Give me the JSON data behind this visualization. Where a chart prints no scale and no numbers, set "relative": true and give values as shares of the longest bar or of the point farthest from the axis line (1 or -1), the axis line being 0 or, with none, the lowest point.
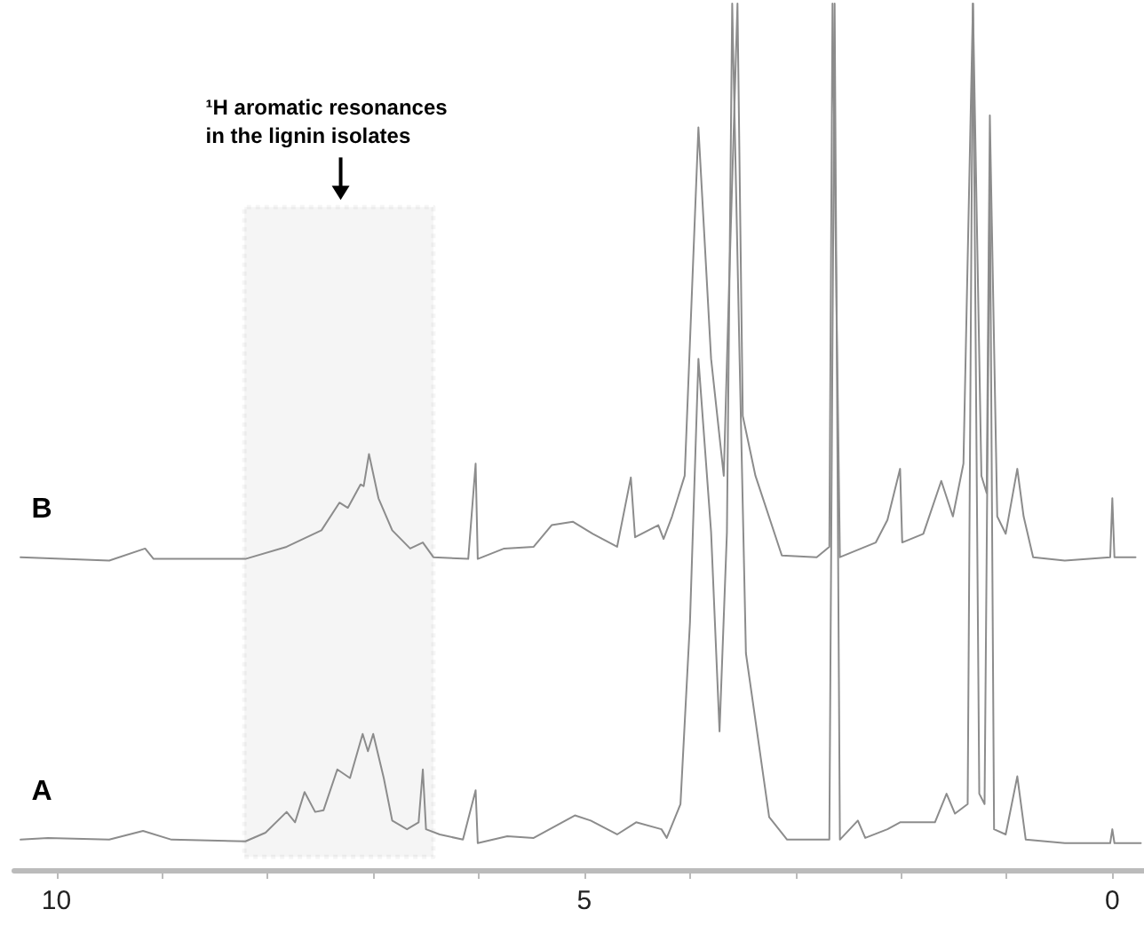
{
  "chart_data": {
    "type": "line",
    "relative": true,
    "legend": false,
    "grid": false,
    "marker": "none",
    "xlim": [
      10.4,
      -0.3
    ],
    "xticks": [
      10,
      {
        "value": 9,
        "label": null
      },
      {
        "value": 8,
        "label": null
      },
      {
        "value": 7,
        "label": null
      },
      {
        "value": 6,
        "label": null
      },
      5,
      {
        "value": 4,
        "label": null
      },
      {
        "value": 3,
        "label": null
      },
      {
        "value": 2,
        "label": null
      },
      {
        "value": 1,
        "label": null
      },
      0
    ],
    "bands": [
      {
        "axis": "x",
        "from": 8.22,
        "to": 6.43,
        "label": "¹H aromatic resonances\nin the lignin isolates",
        "color": "#000000"
      }
    ],
    "series": [
      {
        "name": "B",
        "color": "#8c8c8c",
        "x": [
          10.34,
          9.5,
          9.16,
          9.08,
          8.21,
          7.82,
          7.49,
          7.32,
          7.24,
          7.12,
          7.09,
          7.04,
          6.95,
          6.82,
          6.65,
          6.53,
          6.43,
          6.1,
          6.03,
          6.01,
          5.76,
          5.48,
          5.31,
          5.11,
          4.92,
          4.69,
          4.56,
          4.52,
          4.3,
          4.25,
          4.17,
          4.05,
          3.92,
          3.8,
          3.68,
          3.63,
          3.55,
          3.5,
          3.38,
          3.13,
          2.8,
          2.68,
          2.65,
          2.58,
          2.24,
          2.13,
          2.01,
          1.99,
          1.79,
          1.62,
          1.51,
          1.41,
          1.32,
          1.24,
          1.19,
          1.16,
          1.09,
          1.01,
          0.9,
          0.84,
          0.75,
          0.45,
          0.02,
          0.0,
          -0.02,
          -0.22
        ],
        "values": [
          0.361,
          0.357,
          0.371,
          0.359,
          0.359,
          0.373,
          0.392,
          0.424,
          0.418,
          0.445,
          0.443,
          0.48,
          0.429,
          0.392,
          0.371,
          0.378,
          0.361,
          0.359,
          0.469,
          0.359,
          0.371,
          0.373,
          0.398,
          0.402,
          0.388,
          0.373,
          0.453,
          0.384,
          0.398,
          0.382,
          0.408,
          0.455,
          0.857,
          0.59,
          0.455,
          0.673,
          1,
          0.524,
          0.455,
          0.363,
          0.361,
          0.373,
          1,
          0.361,
          0.378,
          0.404,
          0.463,
          0.378,
          0.388,
          0.449,
          0.408,
          0.469,
          1,
          0.455,
          0.435,
          0.871,
          0.408,
          0.388,
          0.463,
          0.408,
          0.361,
          0.357,
          0.361,
          0.429,
          0.361,
          0.361
        ]
      },
      {
        "name": "A",
        "color": "#8c8c8c",
        "x": [
          10.34,
          10.08,
          9.5,
          9.18,
          8.91,
          8.21,
          8.02,
          7.82,
          7.74,
          7.65,
          7.55,
          7.47,
          7.34,
          7.22,
          7.1,
          7.05,
          7.0,
          6.9,
          6.82,
          6.68,
          6.57,
          6.53,
          6.5,
          6.37,
          6.15,
          6.03,
          6.01,
          5.73,
          5.48,
          5.09,
          4.94,
          4.69,
          4.51,
          4.27,
          4.22,
          4.09,
          4.0,
          3.92,
          3.8,
          3.72,
          3.65,
          3.6,
          3.53,
          3.47,
          3.25,
          3.08,
          2.68,
          2.63,
          2.58,
          2.41,
          2.34,
          2.13,
          2.01,
          1.68,
          1.57,
          1.49,
          1.37,
          1.32,
          1.26,
          1.21,
          1.16,
          1.12,
          1.01,
          0.9,
          0.82,
          0.45,
          0.02,
          0.0,
          -0.02,
          -0.27
        ],
        "values": [
          0.035,
          0.037,
          0.035,
          0.045,
          0.035,
          0.033,
          0.043,
          0.067,
          0.055,
          0.09,
          0.067,
          0.069,
          0.116,
          0.106,
          0.157,
          0.137,
          0.157,
          0.106,
          0.057,
          0.047,
          0.055,
          0.116,
          0.047,
          0.041,
          0.035,
          0.092,
          0.031,
          0.039,
          0.037,
          0.063,
          0.057,
          0.041,
          0.055,
          0.047,
          0.037,
          0.076,
          0.286,
          0.59,
          0.39,
          0.16,
          0.39,
          1,
          0.59,
          0.25,
          0.061,
          0.035,
          0.035,
          1,
          0.035,
          0.057,
          0.037,
          0.047,
          0.055,
          0.055,
          0.088,
          0.065,
          0.076,
          1,
          0.088,
          0.076,
          0.8,
          0.047,
          0.041,
          0.108,
          0.035,
          0.031,
          0.031,
          0.047,
          0.031,
          0.031
        ]
      }
    ]
  }
}
